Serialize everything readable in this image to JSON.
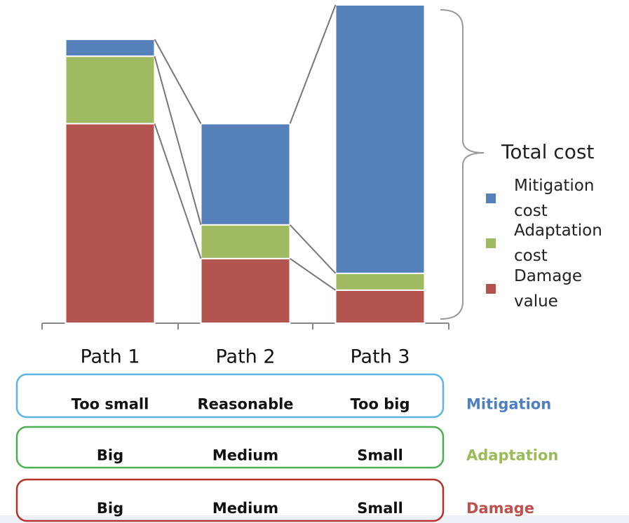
{
  "chart_data": {
    "type": "stacked_bar",
    "categories": [
      "Path 1",
      "Path 2",
      "Path 3"
    ],
    "series": [
      {
        "name": "Damage value",
        "color": "#b3554e",
        "values": [
          284,
          92,
          47
        ]
      },
      {
        "name": "Adaptation cost",
        "color": "#a0ba62",
        "values": [
          96,
          48,
          24
        ]
      },
      {
        "name": "Mitigation cost",
        "color": "#5580b9",
        "values": [
          24,
          144,
          382
        ]
      }
    ],
    "ylim": [
      0,
      460
    ],
    "legend_title": "Total cost"
  },
  "assessment_rows": [
    {
      "label": "Mitigation",
      "color": "#4f7fc0",
      "border": "#5ab4e5",
      "cells": [
        "Too small",
        "Reasonable",
        "Too big"
      ]
    },
    {
      "label": "Adaptation",
      "color": "#9bbb59",
      "border": "#4caf50",
      "cells": [
        "Big",
        "Medium",
        "Small"
      ]
    },
    {
      "label": "Damage",
      "color": "#c0504d",
      "border": "#b8302b",
      "cells": [
        "Big",
        "Medium",
        "Small"
      ]
    }
  ]
}
